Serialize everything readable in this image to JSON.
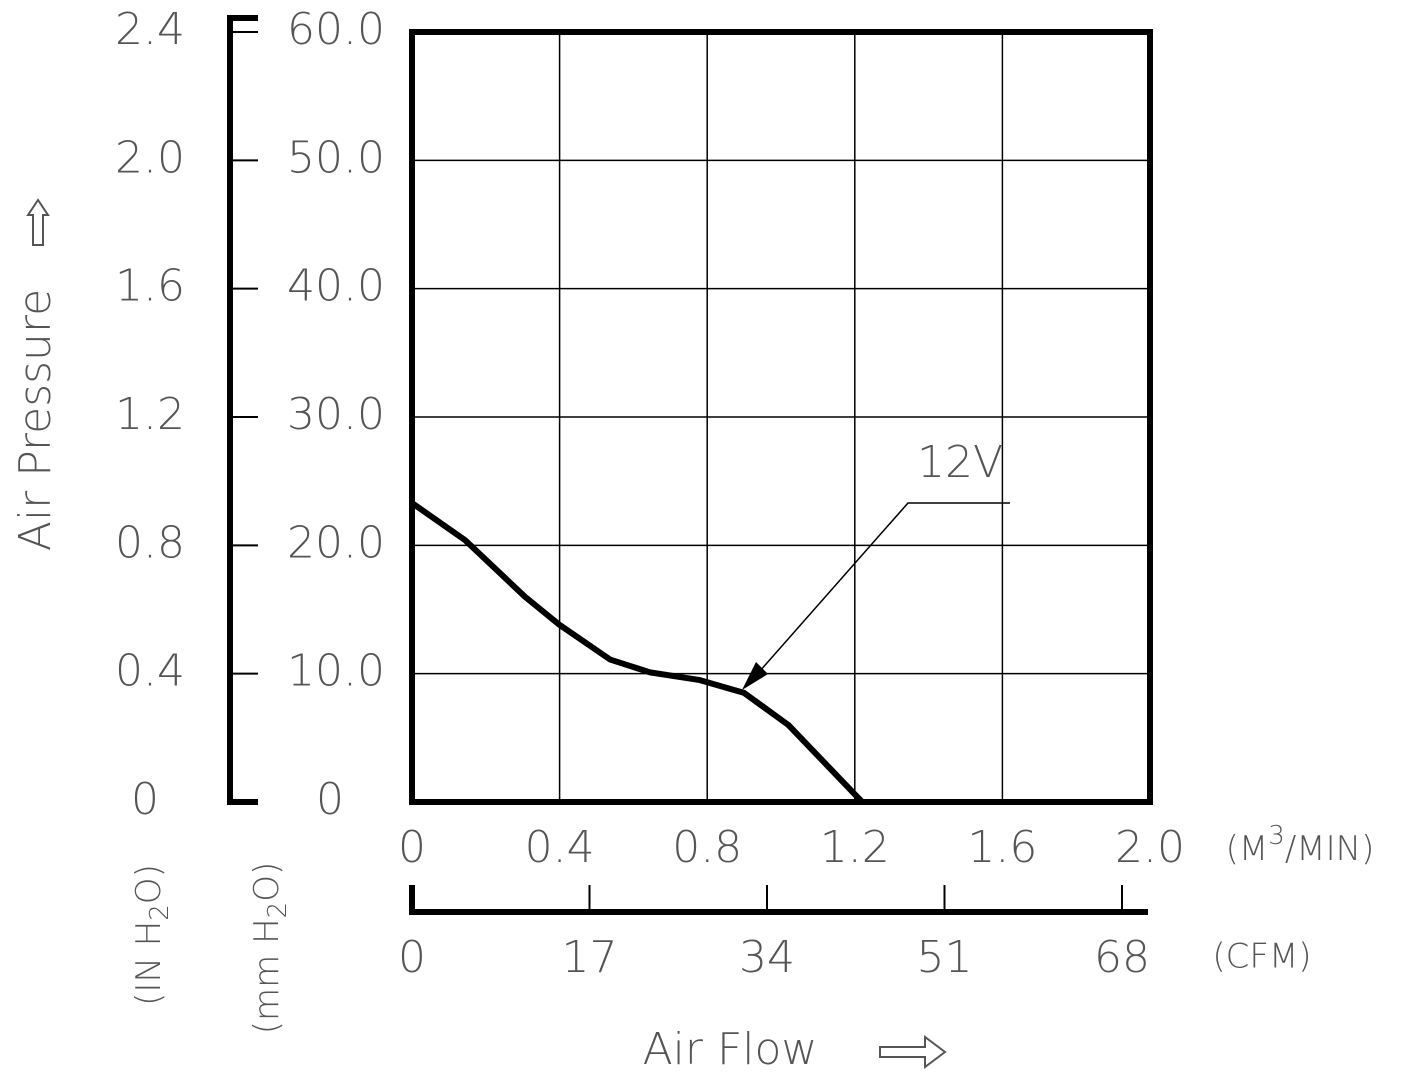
{
  "chart_data": {
    "type": "line",
    "y_title": "Air Pressure",
    "x_title": "Air Flow",
    "x_unit": [
      "(M",
      "3",
      "/MIN)"
    ],
    "x2_unit": "(CFM)",
    "y_unit": [
      "(mm H",
      "2",
      "O)"
    ],
    "y2_unit": [
      "(IN H",
      "2",
      "O)"
    ],
    "annotation": "12V",
    "xlim": [
      0,
      2
    ],
    "xticks": [
      0,
      0.4,
      0.8,
      1.2,
      1.6,
      {
        "value": 2,
        "label": "2.0"
      }
    ],
    "x2lim": [
      0,
      68
    ],
    "x2ticks": [
      0,
      17,
      34,
      51,
      68
    ],
    "ylim": [
      0,
      60
    ],
    "yticks": [
      0,
      {
        "value": 10,
        "label": "10.0"
      },
      {
        "value": 20,
        "label": "20.0"
      },
      {
        "value": 30,
        "label": "30.0"
      },
      {
        "value": 40,
        "label": "40.0"
      },
      {
        "value": 50,
        "label": "50.0"
      },
      {
        "value": 60,
        "label": "60.0"
      }
    ],
    "y2lim": [
      0,
      2.4
    ],
    "y2ticks": [
      0,
      0.4,
      0.8,
      1.2,
      1.6,
      {
        "value": 2,
        "label": "2.0"
      },
      2.4
    ],
    "grid": true,
    "series": [
      {
        "name": "12V",
        "color": "#000000",
        "x": [
          0,
          0.144,
          0.306,
          0.4,
          0.537,
          0.645,
          0.78,
          0.9,
          1.02,
          1.22
        ],
        "values": [
          23.3,
          20.4,
          16.0,
          13.8,
          11.1,
          10.1,
          9.5,
          8.5,
          6.0,
          0
        ]
      }
    ]
  }
}
